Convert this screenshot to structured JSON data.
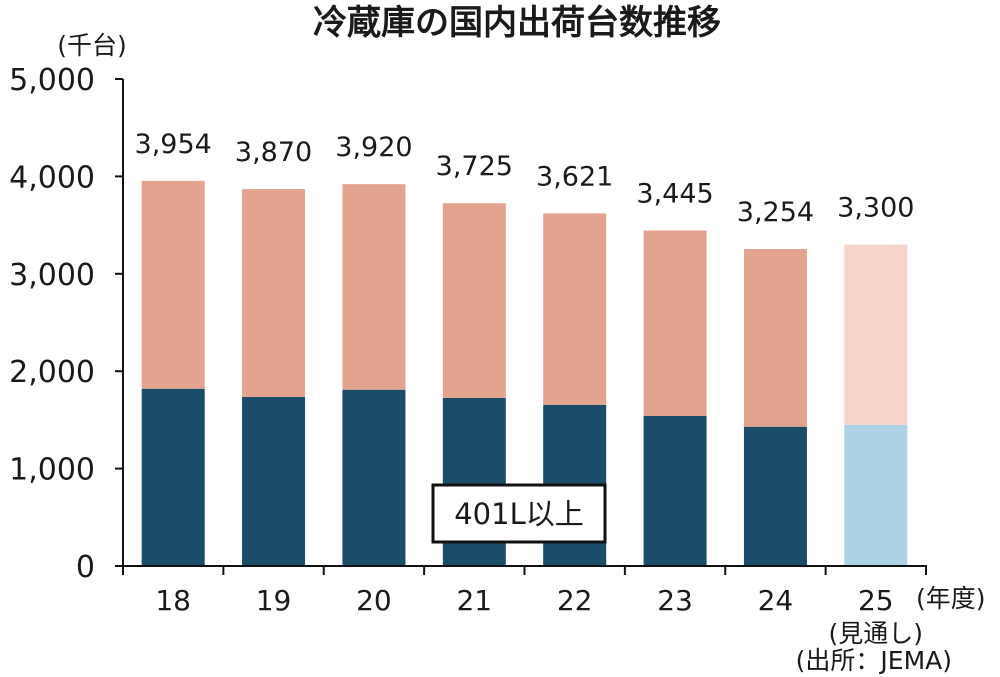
{
  "chart_data": {
    "type": "bar",
    "stacked": true,
    "title": "冷蔵庫の国内出荷台数推移",
    "ylabel": "(千台)",
    "xlabel": "(年度)",
    "categories": [
      "18",
      "19",
      "20",
      "21",
      "22",
      "23",
      "24",
      "25"
    ],
    "ylim": [
      0,
      5000
    ],
    "yticks": [
      0,
      1000,
      2000,
      3000,
      4000,
      5000
    ],
    "series": [
      {
        "name": "401L以上",
        "values": [
          1820,
          1735,
          1810,
          1725,
          1655,
          1540,
          1430,
          1450
        ],
        "color": "#1B4D68",
        "forecast_color": "#AED2E5"
      },
      {
        "values": [
          2134,
          2135,
          2110,
          2000,
          1966,
          1905,
          1824,
          1850
        ],
        "color": "#E2A48F",
        "forecast_color": "#F6D4C9"
      }
    ],
    "totals": [
      3954,
      3870,
      3920,
      3725,
      3621,
      3445,
      3254,
      3300
    ],
    "forecast": {
      "categories": [
        "25"
      ],
      "note": "(見通し)"
    },
    "legend": "inside-bottom-center",
    "grid": false,
    "source": "(出所：JEMA)"
  }
}
